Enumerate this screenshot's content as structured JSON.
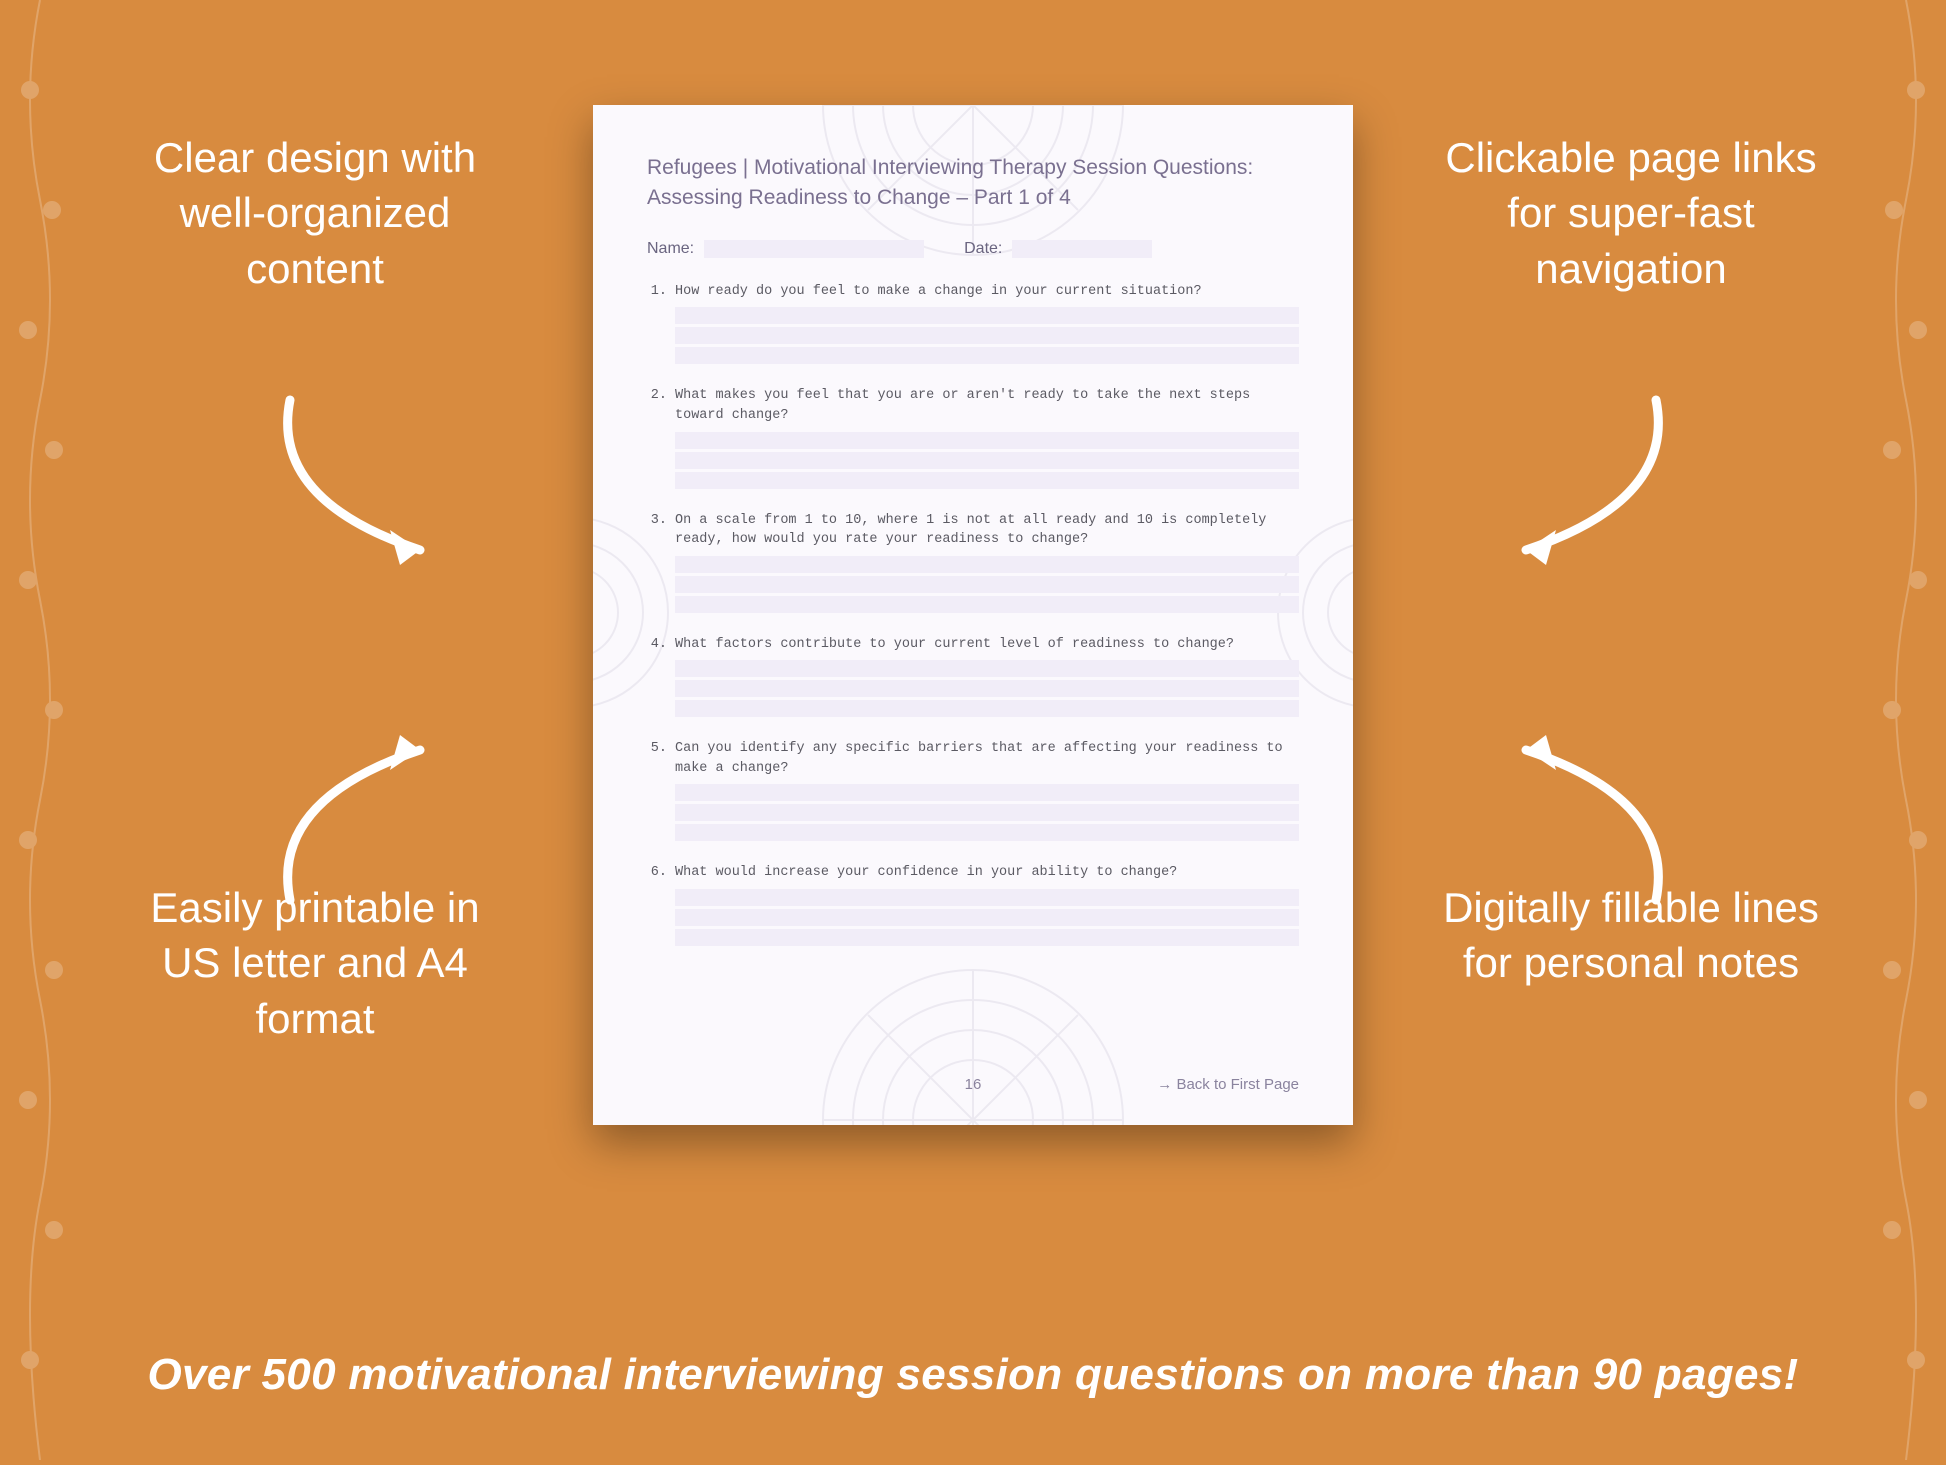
{
  "background_color": "#d88b3f",
  "page": {
    "bg": "#fbf9fd",
    "line_bg": "#f1edf8",
    "title_color": "#7a7090",
    "question_color": "#5b5a63",
    "title_line1": "Refugees | Motivational Interviewing Therapy Session Questions:",
    "title_line2": "Assessing Readiness to Change – Part 1 of 4",
    "name_label": "Name:",
    "date_label": "Date:",
    "questions": [
      {
        "n": "1.",
        "text": "How ready do you feel to make a change in your current situation?"
      },
      {
        "n": "2.",
        "text": "What makes you feel that you are or aren't ready to take the next steps toward change?"
      },
      {
        "n": "3.",
        "text": "On a scale from 1 to 10, where 1 is not at all ready and 10 is completely ready, how would you rate your readiness to change?"
      },
      {
        "n": "4.",
        "text": "What factors contribute to your current level of readiness to change?"
      },
      {
        "n": "5.",
        "text": "Can you identify any specific barriers that are affecting your readiness to make a change?"
      },
      {
        "n": "6.",
        "text": "What would increase your confidence in your ability to change?"
      }
    ],
    "answer_lines": 3,
    "page_number": "16",
    "back_link": "→ Back to First Page"
  },
  "callouts": {
    "tl": "Clear design with well-organized content",
    "tr": "Clickable page links for super-fast navigation",
    "bl": "Easily printable in US letter and A4 format",
    "br": "Digitally fillable lines for personal notes"
  },
  "callout_style": {
    "color": "#ffffff",
    "fontsize": 42
  },
  "arrow_color": "#ffffff",
  "footer": "Over 500 motivational interviewing session questions on more than 90 pages!",
  "footer_style": {
    "color": "#ffffff",
    "fontsize": 44
  }
}
